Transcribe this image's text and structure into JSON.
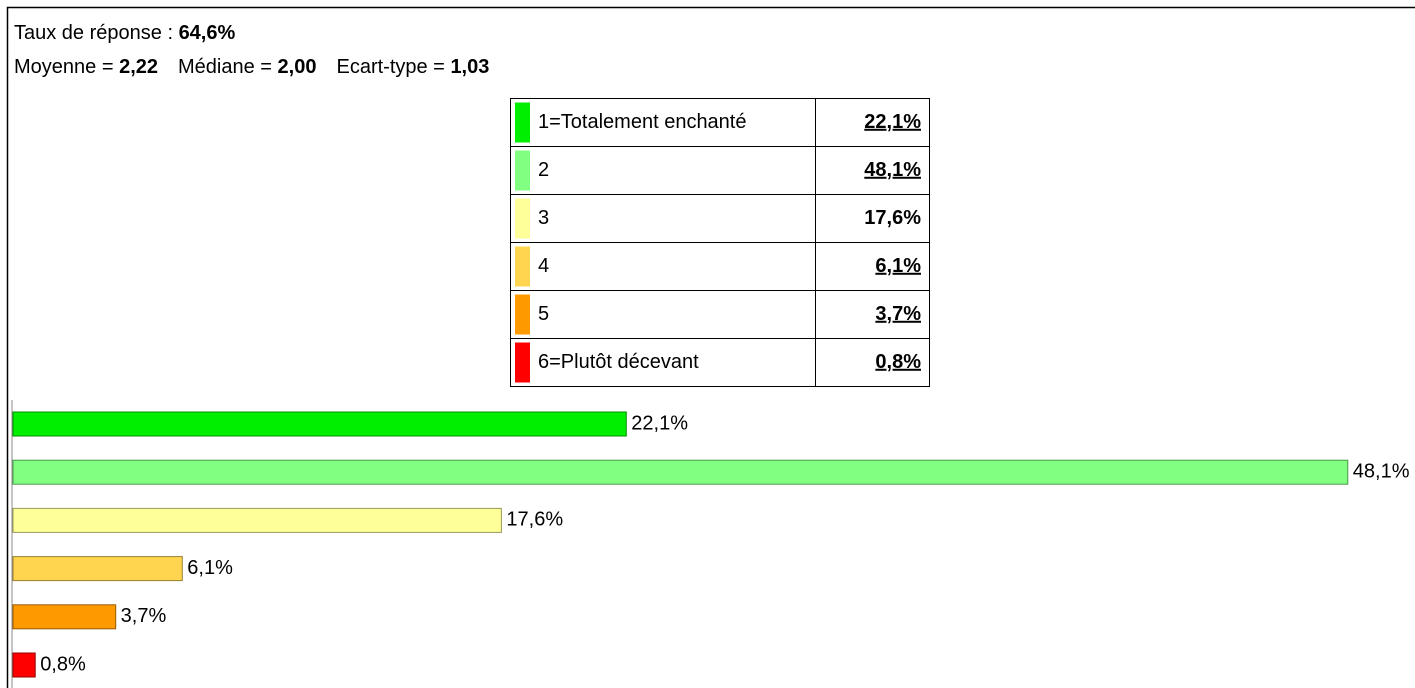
{
  "header": {
    "response_rate_label": "Taux de réponse :",
    "response_rate": "64,6%",
    "mean_label": "Moyenne =",
    "mean": "2,22",
    "median_label": "Médiane =",
    "median": "2,00",
    "stddev_label": "Ecart-type =",
    "stddev": "1,03"
  },
  "chart_data": {
    "type": "bar",
    "orientation": "horizontal",
    "categories": [
      "1=Totalement enchanté",
      "2",
      "3",
      "4",
      "5",
      "6=Plutôt décevant"
    ],
    "values": [
      22.1,
      48.1,
      17.6,
      6.1,
      3.7,
      0.8
    ],
    "value_labels": [
      "22,1%",
      "48,1%",
      "17,6%",
      "6,1%",
      "3,7%",
      "0,8%"
    ],
    "colors": [
      "#00ee00",
      "#80ff80",
      "#ffff99",
      "#ffd54f",
      "#ff9900",
      "#ff0000"
    ],
    "table_value_colors": [
      "#0000cc",
      "#0000cc",
      "#000000",
      "#ee00ee",
      "#ee00ee",
      "#ee00ee"
    ]
  }
}
